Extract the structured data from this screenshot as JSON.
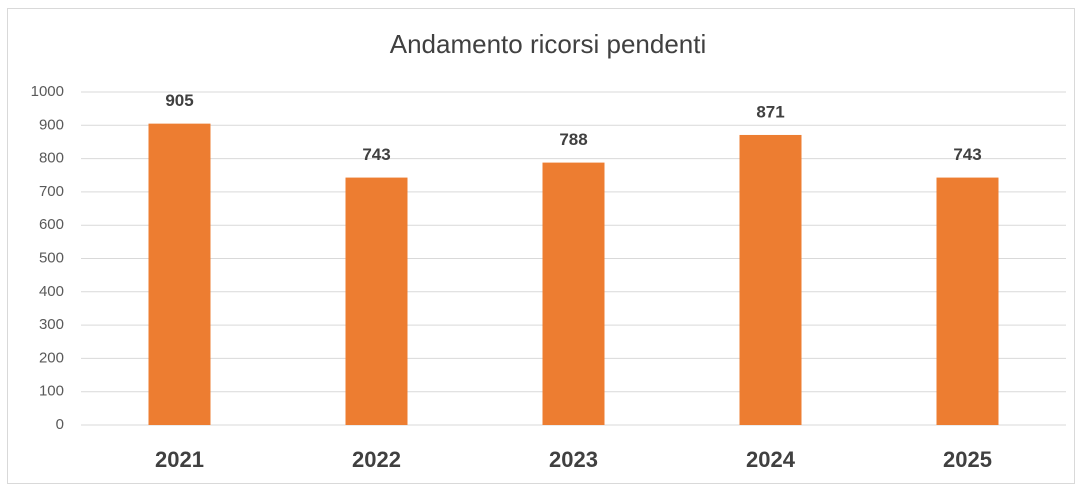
{
  "chart_data": {
    "type": "bar",
    "title": "Andamento ricorsi pendenti",
    "categories": [
      "2021",
      "2022",
      "2023",
      "2024",
      "2025"
    ],
    "values": [
      905,
      743,
      788,
      871,
      743
    ],
    "color": "#ed7d31",
    "ylim": [
      0,
      1000
    ],
    "yticks": [
      0,
      100,
      200,
      300,
      400,
      500,
      600,
      700,
      800,
      900,
      1000
    ],
    "grid": true,
    "data_labels": true
  }
}
